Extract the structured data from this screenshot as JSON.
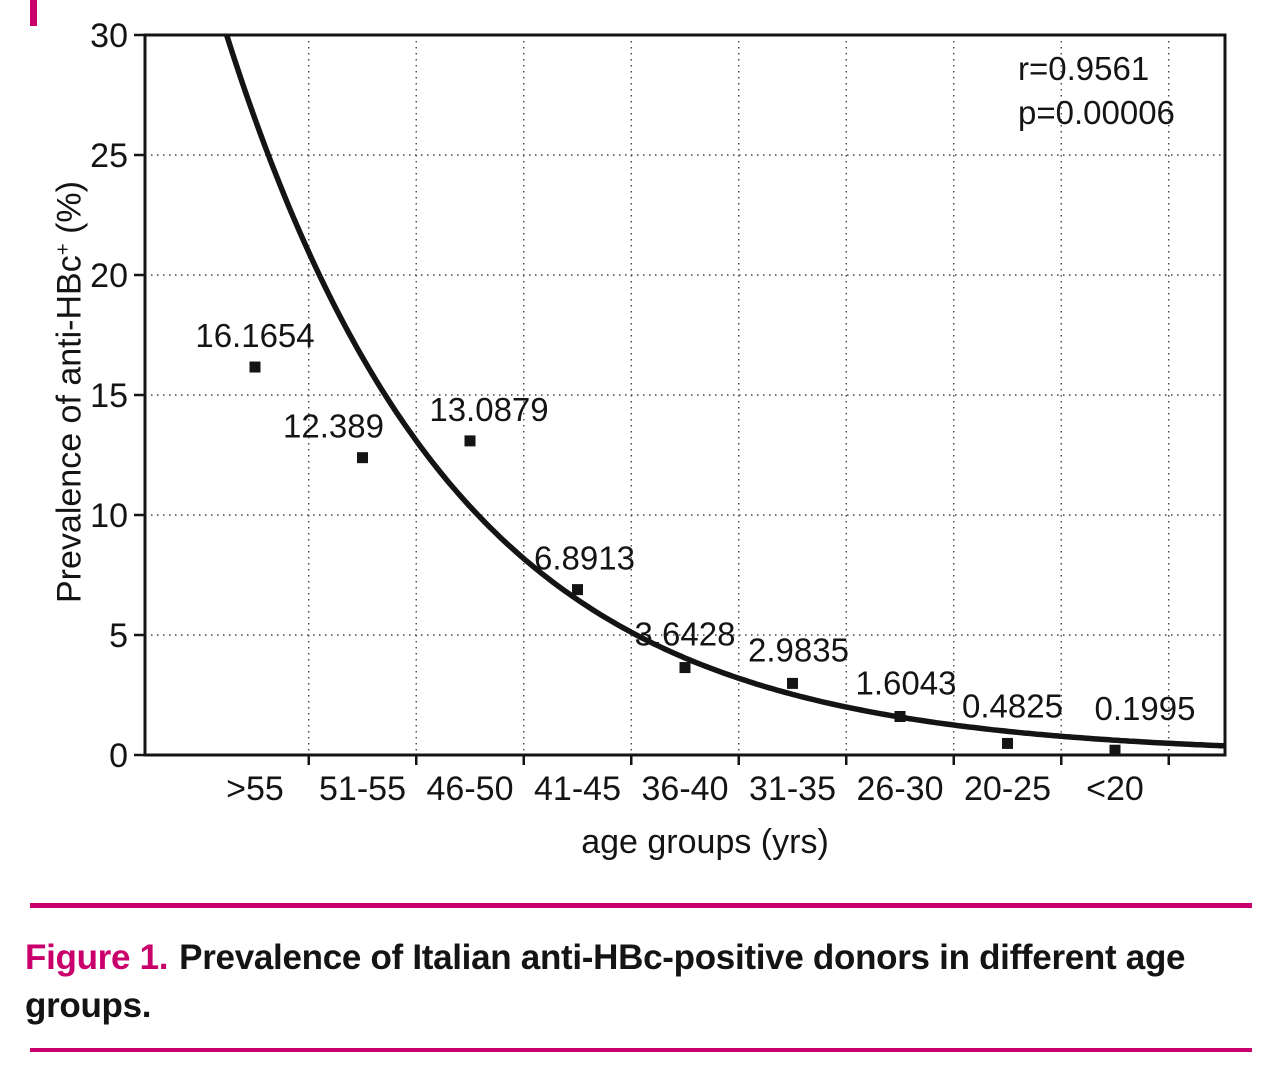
{
  "page": {
    "accent_color": "#c9006b",
    "caption_label": "Figure 1.",
    "caption_text": "Prevalence of Italian anti-HBc-positive donors in different age groups."
  },
  "chart_data": {
    "type": "scatter",
    "title": "",
    "categories": [
      ">55",
      "51-55",
      "46-50",
      "41-45",
      "36-40",
      "31-35",
      "26-30",
      "20-25",
      "<20"
    ],
    "values": [
      16.1654,
      12.389,
      13.0879,
      6.8913,
      3.6428,
      2.9835,
      1.6043,
      0.4825,
      0.1995
    ],
    "point_labels": [
      "16.1654",
      "12.389",
      "13.0879",
      "6.8913",
      "3.6428",
      "2.9835",
      "1.6043",
      "0.4825",
      "0.1995"
    ],
    "xlabel": "age groups (yrs)",
    "ylabel": "Prevalence of anti-HBc",
    "ylabel_sup": "+",
    "ylabel_unit": " (%)",
    "ylim": [
      0,
      30
    ],
    "yticks": [
      0,
      5,
      10,
      15,
      20,
      25,
      30
    ],
    "grid": "dotted",
    "legend": "none",
    "annotations": [
      "r=0.9561",
      "p=0.00006"
    ],
    "trendline": {
      "type": "exponential-decay",
      "visible": true
    }
  }
}
